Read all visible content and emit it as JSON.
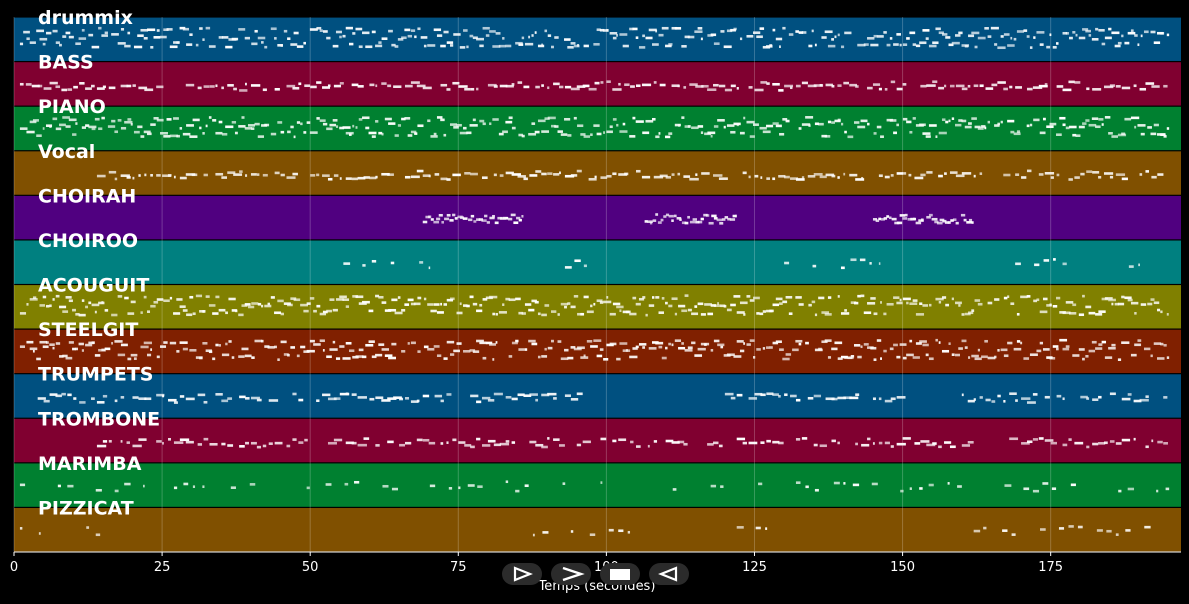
{
  "chart_data": {
    "type": "piano-roll",
    "xlabel": "Temps (secondes)",
    "xlim": [
      0,
      197
    ],
    "xticks": [
      0,
      25,
      50,
      75,
      100,
      125,
      150,
      175
    ],
    "grid": true,
    "tracks": [
      {
        "name": "drummix",
        "color": "#005080",
        "density": "dense",
        "active": [
          [
            1,
            195
          ]
        ]
      },
      {
        "name": "BASS",
        "color": "#800030",
        "density": "medium",
        "active": [
          [
            1,
            195
          ]
        ]
      },
      {
        "name": "PIANO",
        "color": "#008030",
        "density": "dense",
        "active": [
          [
            1,
            195
          ]
        ]
      },
      {
        "name": "Vocal",
        "color": "#805000",
        "density": "medium",
        "active": [
          [
            14,
            195
          ]
        ]
      },
      {
        "name": "CHOIRAH",
        "color": "#500080",
        "density": "block",
        "active": [
          [
            69,
            86
          ],
          [
            106,
            122
          ],
          [
            145,
            162
          ]
        ]
      },
      {
        "name": "CHOIROO",
        "color": "#008080",
        "density": "sparse",
        "active": [
          [
            54,
            70
          ],
          [
            93,
            101
          ],
          [
            130,
            146
          ],
          [
            169,
            190
          ]
        ]
      },
      {
        "name": "ACOUGUIT",
        "color": "#808000",
        "density": "dense",
        "active": [
          [
            1,
            195
          ]
        ]
      },
      {
        "name": "STEELGIT",
        "color": "#802000",
        "density": "dense",
        "active": [
          [
            1,
            195
          ]
        ]
      },
      {
        "name": "TRUMPETS",
        "color": "#005080",
        "density": "medium",
        "active": [
          [
            4,
            49
          ],
          [
            51,
            96
          ],
          [
            120,
            151
          ],
          [
            160,
            195
          ]
        ]
      },
      {
        "name": "TROMBONE",
        "color": "#800030",
        "density": "medium",
        "active": [
          [
            14,
            50
          ],
          [
            53,
            93
          ],
          [
            95,
            130
          ],
          [
            132,
            162
          ],
          [
            168,
            195
          ]
        ]
      },
      {
        "name": "MARIMBA",
        "color": "#008030",
        "density": "sparse",
        "active": [
          [
            1,
            22
          ],
          [
            27,
            100
          ],
          [
            108,
            195
          ]
        ]
      },
      {
        "name": "PIZZICAT",
        "color": "#805000",
        "density": "sparse",
        "active": [
          [
            1,
            15
          ],
          [
            86,
            105
          ],
          [
            122,
            130
          ],
          [
            162,
            195
          ]
        ]
      }
    ]
  },
  "controls": [
    {
      "name": "play",
      "icon": "play-icon"
    },
    {
      "name": "forward",
      "icon": "forward-icon"
    },
    {
      "name": "stop",
      "icon": "stop-icon"
    },
    {
      "name": "reverse",
      "icon": "reverse-icon"
    }
  ]
}
